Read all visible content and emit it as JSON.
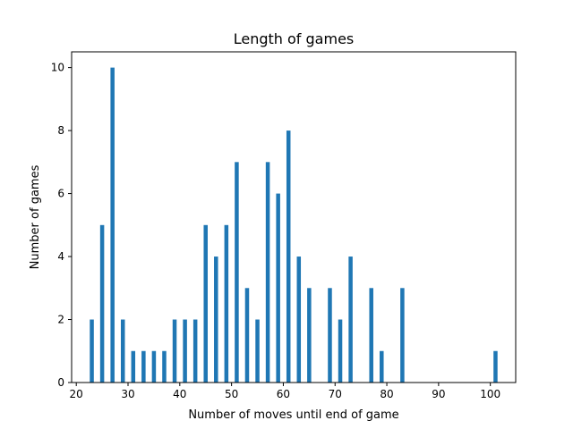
{
  "chart_data": {
    "type": "bar",
    "title": "Length of games",
    "xlabel": "Number of moves until end of game",
    "ylabel": "Number of games",
    "xlim": [
      19.1,
      104.9
    ],
    "ylim": [
      0,
      10.5
    ],
    "xticks": [
      20,
      30,
      40,
      50,
      60,
      70,
      80,
      90,
      100
    ],
    "yticks": [
      0,
      2,
      4,
      6,
      8,
      10
    ],
    "grid": false,
    "bar_color": "#1f77b4",
    "bar_width": 0.78,
    "x": [
      23,
      25,
      27,
      29,
      31,
      33,
      35,
      37,
      39,
      41,
      43,
      45,
      47,
      49,
      51,
      53,
      55,
      57,
      59,
      61,
      63,
      65,
      69,
      71,
      73,
      77,
      79,
      83,
      101
    ],
    "values": [
      2,
      5,
      10,
      2,
      1,
      1,
      1,
      1,
      2,
      2,
      2,
      5,
      4,
      5,
      7,
      3,
      2,
      7,
      6,
      8,
      4,
      3,
      3,
      2,
      4,
      3,
      1,
      3,
      1
    ]
  }
}
